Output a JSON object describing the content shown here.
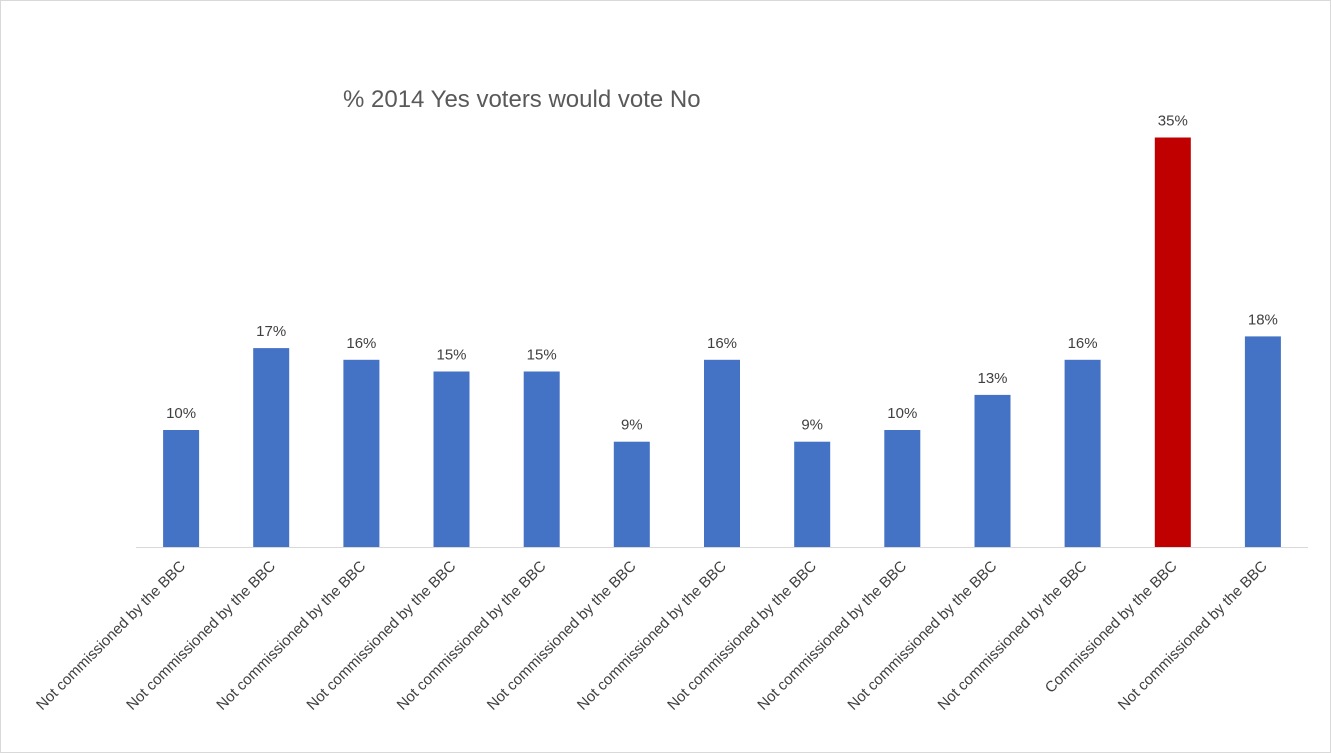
{
  "chart_data": {
    "type": "bar",
    "title": "% 2014 Yes voters would vote No",
    "xlabel": "",
    "ylabel": "",
    "ylim": [
      0,
      35
    ],
    "grid": false,
    "legend": "none",
    "categories": [
      "Not commissioned by the BBC",
      "Not commissioned by the BBC",
      "Not commissioned by the BBC",
      "Not commissioned by the BBC",
      "Not commissioned by the BBC",
      "Not commissioned by the BBC",
      "Not commissioned by the BBC",
      "Not commissioned by the BBC",
      "Not commissioned by the BBC",
      "Not commissioned by the BBC",
      "Not commissioned by the BBC",
      "Commissioned by the BBC",
      "Not commissioned by the BBC"
    ],
    "values": [
      10,
      17,
      16,
      15,
      15,
      9,
      16,
      9,
      10,
      13,
      16,
      35,
      18
    ],
    "data_labels": [
      "10%",
      "17%",
      "16%",
      "15%",
      "15%",
      "9%",
      "16%",
      "9%",
      "10%",
      "13%",
      "16%",
      "35%",
      "18%"
    ],
    "colors": {
      "default_bar": "#4472C4",
      "highlight_bar": "#C00000",
      "axis": "#d9d9d9",
      "text": "#404040",
      "title": "#595959"
    },
    "highlight_index": 11
  }
}
